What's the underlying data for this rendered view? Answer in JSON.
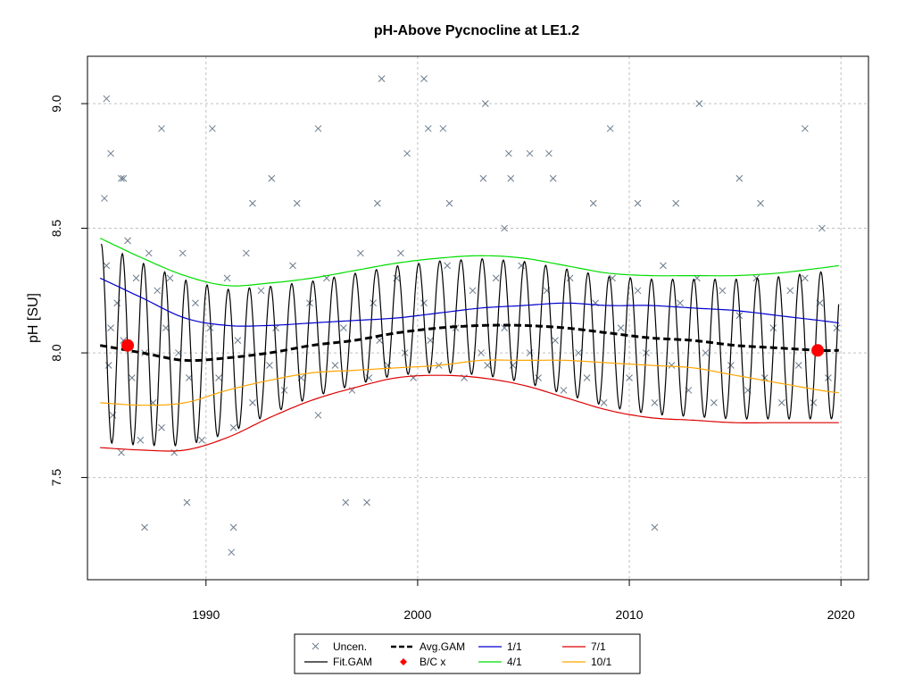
{
  "chart_data": {
    "type": "scatter",
    "title": "pH-Above Pycnocline at LE1.2",
    "xlabel": "",
    "ylabel": "pH [SU]",
    "xlim": [
      1984.4,
      2021.3
    ],
    "ylim": [
      7.09,
      9.19
    ],
    "xticks": [
      1990,
      2000,
      2010,
      2020
    ],
    "yticks": [
      7.5,
      8.0,
      8.5,
      9.0
    ],
    "grid": true,
    "legend_position": "bottom",
    "colors": {
      "uncen": "#6b7b8c",
      "fit_gam": "#000000",
      "avg_gam": "#000000",
      "bc": "#ff0000",
      "p1": "#0000cd",
      "p4": "#00dd00",
      "p7": "#dd0000",
      "p10": "#ffa500",
      "grid": "#c0c0c0"
    },
    "legend": [
      {
        "key": "uncen",
        "label": "Uncen."
      },
      {
        "key": "fit_gam",
        "label": "Fit.GAM"
      },
      {
        "key": "avg_gam",
        "label": "Avg.GAM"
      },
      {
        "key": "bc",
        "label": "B/C x"
      },
      {
        "key": "p1",
        "label": "1/1"
      },
      {
        "key": "p4",
        "label": "4/1"
      },
      {
        "key": "p7",
        "label": "7/1"
      },
      {
        "key": "p10",
        "label": "10/1"
      }
    ],
    "baseline_change_points": [
      {
        "x": 1986.3,
        "y": 8.03
      },
      {
        "x": 2018.9,
        "y": 8.01
      }
    ],
    "series": [
      {
        "name": "Avg.GAM",
        "x": [
          1985,
          1987,
          1989,
          1991,
          1993,
          1995,
          1997,
          1999,
          2001,
          2003,
          2005,
          2007,
          2009,
          2011,
          2013,
          2015,
          2017,
          2019,
          2019.9
        ],
        "y": [
          8.03,
          8.0,
          7.97,
          7.98,
          8.0,
          8.03,
          8.05,
          8.08,
          8.1,
          8.11,
          8.11,
          8.1,
          8.08,
          8.06,
          8.05,
          8.03,
          8.02,
          8.01,
          8.01
        ]
      },
      {
        "name": "1/1",
        "x": [
          1985,
          1987,
          1989,
          1991,
          1993,
          1995,
          1997,
          1999,
          2001,
          2003,
          2005,
          2007,
          2009,
          2011,
          2013,
          2015,
          2017,
          2019,
          2019.9
        ],
        "y": [
          8.3,
          8.22,
          8.14,
          8.11,
          8.11,
          8.12,
          8.13,
          8.14,
          8.16,
          8.18,
          8.19,
          8.2,
          8.19,
          8.19,
          8.18,
          8.17,
          8.15,
          8.13,
          8.12
        ]
      },
      {
        "name": "4/1",
        "x": [
          1985,
          1987,
          1989,
          1991,
          1993,
          1995,
          1997,
          1999,
          2001,
          2003,
          2005,
          2007,
          2009,
          2011,
          2013,
          2015,
          2017,
          2019,
          2019.9
        ],
        "y": [
          8.46,
          8.38,
          8.31,
          8.27,
          8.28,
          8.3,
          8.33,
          8.36,
          8.38,
          8.39,
          8.38,
          8.35,
          8.32,
          8.31,
          8.31,
          8.31,
          8.32,
          8.34,
          8.35
        ]
      },
      {
        "name": "7/1",
        "x": [
          1985,
          1987,
          1989,
          1991,
          1993,
          1995,
          1997,
          1999,
          2001,
          2003,
          2005,
          2007,
          2009,
          2011,
          2013,
          2015,
          2017,
          2019,
          2019.9
        ],
        "y": [
          7.62,
          7.61,
          7.61,
          7.66,
          7.74,
          7.81,
          7.86,
          7.9,
          7.91,
          7.9,
          7.87,
          7.82,
          7.77,
          7.74,
          7.73,
          7.72,
          7.72,
          7.72,
          7.72
        ]
      },
      {
        "name": "10/1",
        "x": [
          1985,
          1987,
          1989,
          1991,
          1993,
          1995,
          1997,
          1999,
          2001,
          2003,
          2005,
          2007,
          2009,
          2011,
          2013,
          2015,
          2017,
          2019,
          2019.9
        ],
        "y": [
          7.8,
          7.79,
          7.8,
          7.85,
          7.89,
          7.92,
          7.93,
          7.94,
          7.95,
          7.97,
          7.97,
          7.97,
          7.96,
          7.95,
          7.94,
          7.91,
          7.88,
          7.85,
          7.84
        ]
      },
      {
        "name": "Uncen.",
        "x": [
          1985.2,
          1985.3,
          1985.4,
          1985.5,
          1985.6,
          1985.8,
          1986.0,
          1986.1,
          1986.3,
          1986.5,
          1986.7,
          1986.9,
          1987.1,
          1987.3,
          1987.5,
          1987.7,
          1987.9,
          1988.1,
          1988.3,
          1988.5,
          1988.7,
          1988.9,
          1989.2,
          1989.5,
          1989.8,
          1990.2,
          1990.6,
          1991.0,
          1991.3,
          1991.5,
          1991.9,
          1992.2,
          1992.6,
          1993.0,
          1993.3,
          1993.7,
          1994.1,
          1994.5,
          1994.9,
          1995.3,
          1995.7,
          1996.1,
          1996.5,
          1996.9,
          1997.3,
          1997.7,
          1997.9,
          1998.2,
          1998.6,
          1999.0,
          1999.4,
          1999.8,
          2000.3,
          2000.6,
          2001.0,
          2001.4,
          2001.8,
          2002.2,
          2002.6,
          2003.0,
          2003.3,
          2003.7,
          2004.1,
          2004.5,
          2004.9,
          2005.3,
          2005.7,
          2006.1,
          2006.5,
          2006.9,
          2007.2,
          2007.6,
          2008.0,
          2008.4,
          2008.8,
          2009.2,
          2009.6,
          2010.0,
          2010.4,
          2010.8,
          2011.2,
          2011.6,
          2012.0,
          2012.4,
          2012.8,
          2013.2,
          2013.6,
          2014.0,
          2014.4,
          2014.8,
          2015.2,
          2015.6,
          2016.0,
          2016.4,
          2016.8,
          2017.2,
          2017.6,
          2018.0,
          2018.3,
          2018.7,
          2019.0,
          2019.4,
          2019.8,
          1985.3,
          1985.5,
          1986.0,
          1986.1,
          1987.1,
          1987.9,
          1989.1,
          1990.3,
          1991.2,
          1991.3,
          1992.2,
          1993.1,
          1994.3,
          1995.3,
          1996.6,
          1997.6,
          1998.1,
          1998.3,
          1999.2,
          1999.5,
          2000.3,
          2000.5,
          2001.2,
          2001.5,
          2003.1,
          2003.2,
          2004.1,
          2004.3,
          2004.4,
          2005.3,
          2006.2,
          2006.4,
          2008.3,
          2009.1,
          2010.4,
          2011.2,
          2012.2,
          2013.3,
          2015.2,
          2016.2,
          2018.3,
          2019.1
        ],
        "y": [
          8.62,
          8.35,
          7.95,
          8.1,
          7.75,
          8.2,
          7.6,
          8.05,
          8.45,
          7.9,
          8.3,
          7.65,
          8.0,
          8.4,
          7.8,
          8.25,
          7.7,
          8.1,
          8.3,
          7.6,
          8.0,
          8.4,
          7.9,
          8.2,
          7.65,
          8.1,
          7.9,
          8.3,
          7.7,
          8.05,
          8.4,
          7.8,
          8.25,
          7.95,
          8.1,
          7.85,
          8.35,
          7.9,
          8.2,
          7.75,
          8.3,
          7.95,
          8.1,
          7.85,
          8.4,
          7.9,
          8.2,
          8.05,
          7.95,
          8.3,
          8.0,
          7.9,
          8.2,
          8.05,
          7.95,
          8.35,
          8.1,
          7.9,
          8.25,
          8.0,
          7.95,
          8.3,
          8.1,
          7.95,
          8.35,
          8.0,
          7.9,
          8.25,
          8.05,
          7.85,
          8.3,
          8.0,
          7.9,
          8.2,
          7.8,
          8.3,
          8.1,
          7.9,
          8.25,
          8.0,
          7.8,
          8.35,
          7.95,
          8.2,
          7.85,
          8.3,
          8.0,
          7.8,
          8.25,
          7.95,
          8.15,
          7.85,
          8.3,
          7.9,
          8.1,
          7.8,
          8.25,
          7.95,
          8.3,
          7.8,
          8.2,
          7.9,
          8.1,
          9.02,
          8.8,
          8.7,
          8.7,
          7.3,
          8.9,
          7.4,
          8.9,
          7.2,
          7.3,
          8.6,
          8.7,
          8.6,
          8.9,
          7.4,
          7.4,
          8.6,
          9.1,
          8.4,
          8.8,
          9.1,
          8.9,
          8.9,
          8.6,
          8.7,
          9.0,
          8.5,
          8.8,
          8.7,
          8.8,
          8.8,
          8.7,
          8.6,
          8.9,
          8.6,
          7.3,
          8.6,
          9.0,
          8.7,
          8.6,
          8.9,
          8.5
        ]
      }
    ]
  }
}
